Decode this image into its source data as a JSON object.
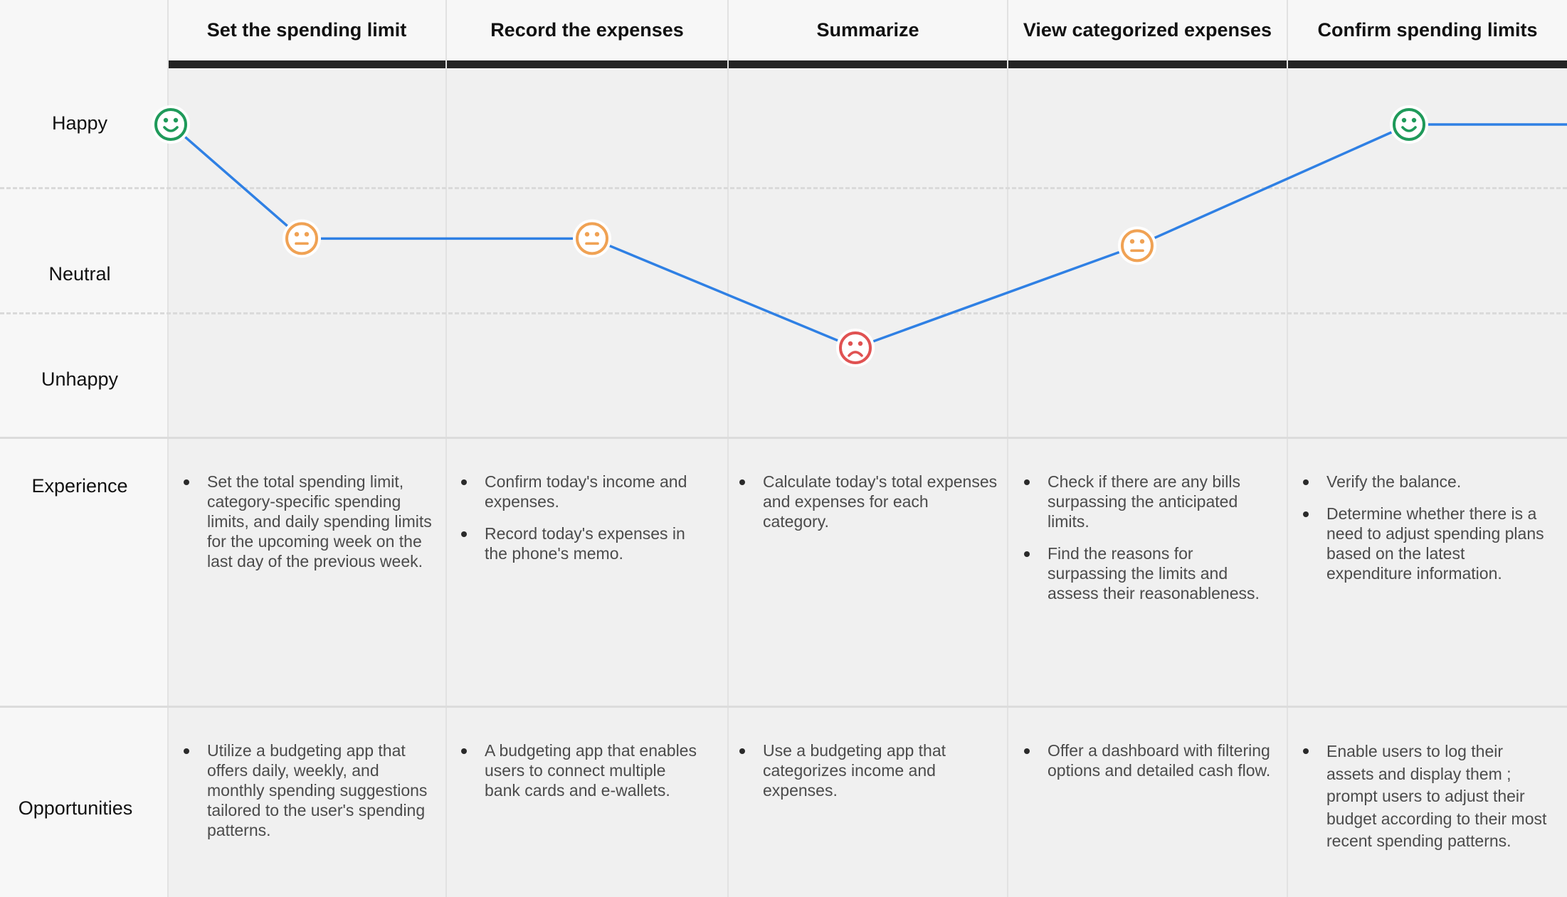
{
  "stages": [
    {
      "title": "Set the spending limit"
    },
    {
      "title": "Record the expenses"
    },
    {
      "title": "Summarize"
    },
    {
      "title": "View categorized expenses"
    },
    {
      "title": "Confirm spending limits"
    }
  ],
  "emotion_levels": [
    "Happy",
    "Neutral",
    "Unhappy"
  ],
  "row_labels": {
    "experience": "Experience",
    "opportunities": "Opportunities"
  },
  "experience": [
    [
      "Set the total spending limit, category-specific spending limits, and daily spending limits for the upcoming week on the last day of the previous week."
    ],
    [
      "Confirm today's income and expenses.",
      "Record today's expenses in the phone's memo."
    ],
    [
      "Calculate today's total expenses and expenses for each category."
    ],
    [
      "Check if there are any bills surpassing the anticipated limits.",
      "Find the reasons for surpassing the limits and assess their reasonableness."
    ],
    [
      "Verify the balance.",
      "Determine whether there is a need to adjust spending plans based on the latest expenditure information."
    ]
  ],
  "opportunities": [
    [
      "Utilize a budgeting app that offers daily, weekly, and monthly spending suggestions tailored to the user's spending patterns."
    ],
    [
      "A budgeting app that enables users to connect multiple bank cards and e-wallets."
    ],
    [
      "Use a budgeting app that categorizes income and expenses."
    ],
    [
      "Offer a dashboard with filtering options and detailed cash flow."
    ],
    [
      "Enable users to log their assets and display them ; prompt users to adjust their budget according to their most recent spending patterns."
    ]
  ],
  "journey_points": [
    {
      "mood": "happy",
      "level": 1.0
    },
    {
      "mood": "neutral",
      "level": 0.52
    },
    {
      "mood": "neutral",
      "level": 0.52
    },
    {
      "mood": "unhappy",
      "level": 0.06
    },
    {
      "mood": "neutral",
      "level": 0.49
    },
    {
      "mood": "happy",
      "level": 1.0
    }
  ],
  "colors": {
    "line": "#2f80e4",
    "happy": "#1f9a5a",
    "neutral": "#f0a254",
    "unhappy": "#e05252",
    "face_bg": "#ffffff"
  },
  "icons": {
    "happy": "smiling-face-icon",
    "neutral": "neutral-face-icon",
    "unhappy": "frowning-face-icon"
  }
}
